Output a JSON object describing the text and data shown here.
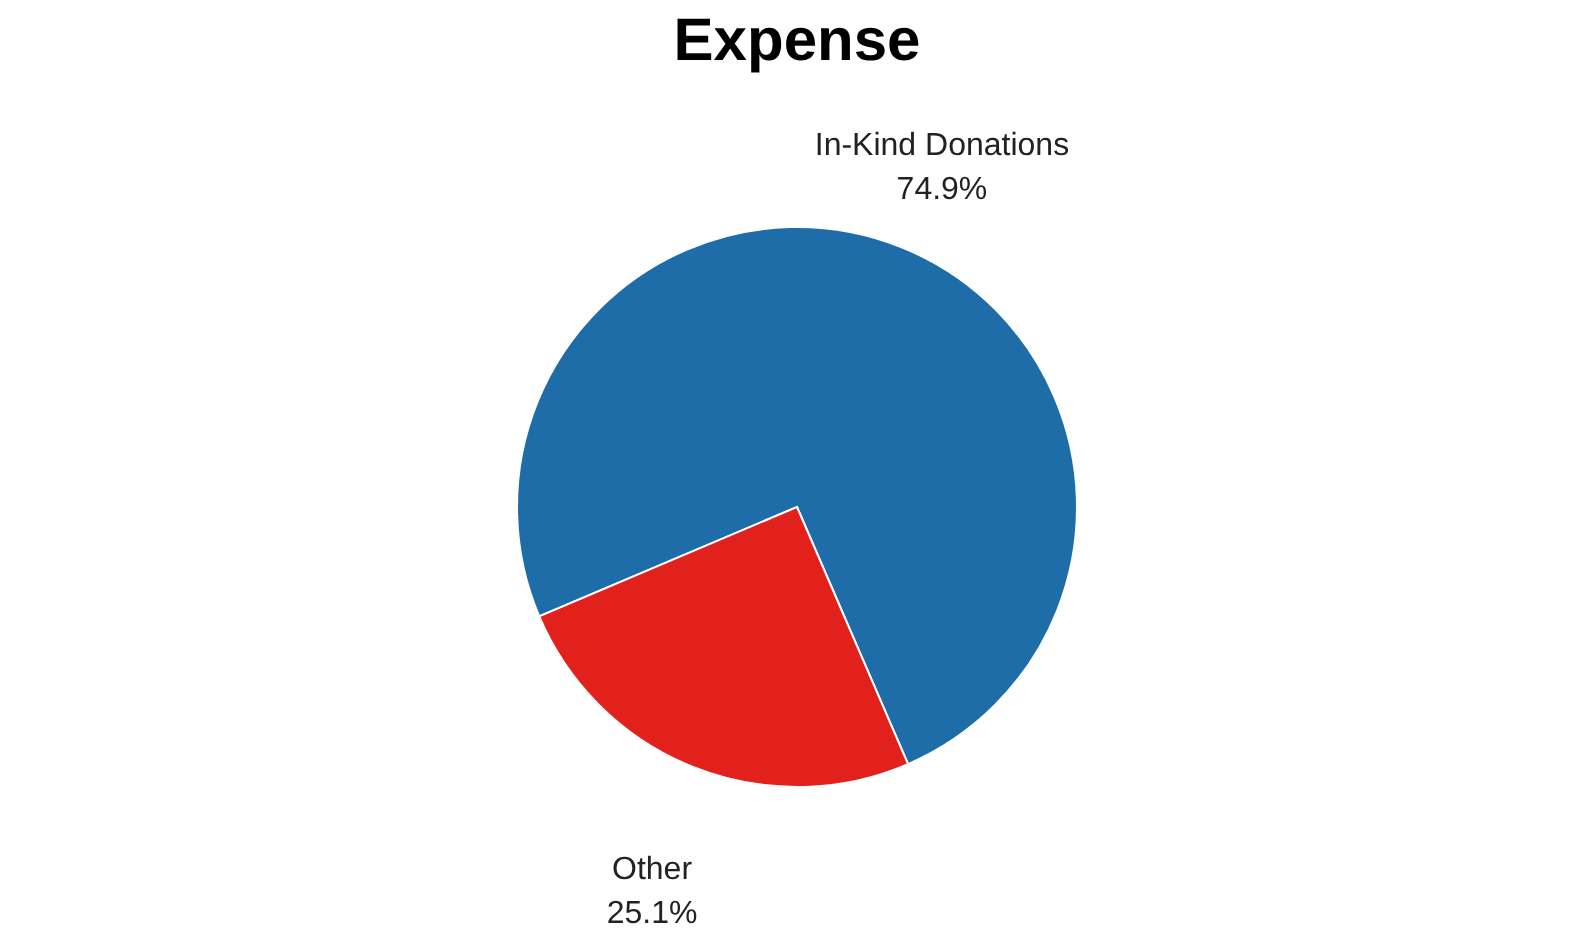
{
  "chart_data": {
    "type": "pie",
    "title": "Expense",
    "categories": [
      "In-Kind Donations",
      "Other"
    ],
    "values": [
      74.9,
      25.1
    ],
    "value_labels": [
      "74.9%",
      "25.1%"
    ],
    "colors": [
      "#1f6da8",
      "#e3211c"
    ],
    "legend": false
  }
}
